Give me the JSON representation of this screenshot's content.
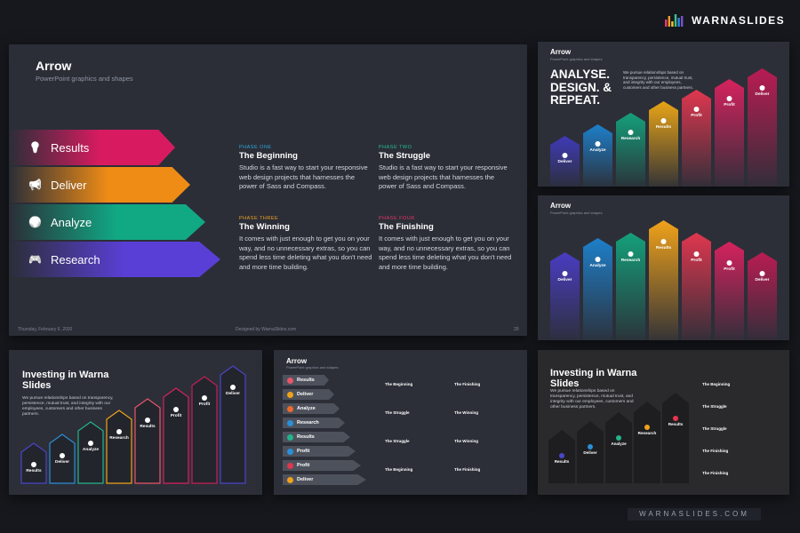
{
  "brand": {
    "name": "WARNASLIDES",
    "bar_colors": [
      "#e63a6f",
      "#f09a2c",
      "#f6c42a",
      "#3fbf8f",
      "#2f8ad8",
      "#7a4fd0"
    ]
  },
  "main_slide": {
    "title": "Arrow",
    "subtitle": "PowerPoint graphics and shapes",
    "arrows": [
      {
        "label": "Results",
        "icon": "lightbulb-icon",
        "color": "#d81b60"
      },
      {
        "label": "Deliver",
        "icon": "megaphone-icon",
        "color": "#ef8c16"
      },
      {
        "label": "Analyze",
        "icon": "globe-icon",
        "color": "#11a884"
      },
      {
        "label": "Research",
        "icon": "gamepad-icon",
        "color": "#5a3fd6"
      }
    ],
    "phases": [
      {
        "label": "PHASE ONE",
        "color": "#2fa8e0",
        "title": "The Beginning",
        "body": "Studio is a fast way to start your responsive web design projects that harnesses the power of Sass and Compass."
      },
      {
        "label": "PHASE TWO",
        "color": "#22c08e",
        "title": "The Struggle",
        "body": "Studio is a fast way to start your responsive web design projects that harnesses the power of Sass and Compass."
      },
      {
        "label": "PHASE THREE",
        "color": "#f0a020",
        "title": "The Winning",
        "body": "It comes with just enough to get you on your way, and no unnecessary extras, so you can spend less time deleting what you don't need and more time building."
      },
      {
        "label": "PHASE FOUR",
        "color": "#e8346a",
        "title": "The Finishing",
        "body": "It comes with just enough to get you on your way, and no unnecessary extras, so you can spend less time deleting what you don't need and more time building."
      }
    ],
    "footer_date": "Thursday, February 6, 2020",
    "footer_center": "Designed by WarnaSlides.com",
    "page_number": "29"
  },
  "thumb_analyse": {
    "title": "Arrow",
    "subtitle": "PowerPoint graphics and shapes",
    "headline": "ANALYSE. DESIGN. & REPEAT.",
    "text": "We pursue relationships based on transparency, persistence, mutual trust, and integrity with our employees, customers and other business partners.",
    "columns": [
      {
        "label": "Deliver",
        "color": "#3f3ab8"
      },
      {
        "label": "Analyze",
        "color": "#1e7fc9"
      },
      {
        "label": "Research",
        "color": "#14a07a"
      },
      {
        "label": "Results",
        "color": "#e8a416"
      },
      {
        "label": "Profit",
        "color": "#e0364f"
      },
      {
        "label": "Profit",
        "color": "#d6225e"
      },
      {
        "label": "Deliver",
        "color": "#b91c52"
      }
    ]
  },
  "thumb_columns": {
    "title": "Arrow",
    "subtitle": "PowerPoint graphics and shapes",
    "columns": [
      {
        "label": "Deliver",
        "color": "#4a3cc2"
      },
      {
        "label": "Analyze",
        "color": "#1e7fc9"
      },
      {
        "label": "Research",
        "color": "#14a07a"
      },
      {
        "label": "Results",
        "color": "#f0a21a"
      },
      {
        "label": "Profit",
        "color": "#e0364f"
      },
      {
        "label": "Profit",
        "color": "#d6225e"
      },
      {
        "label": "Deliver",
        "color": "#b91c52"
      }
    ]
  },
  "thumb_investing": {
    "title": "Investing in Warna Slides",
    "text": "We pursue relationships based on transparency, persistence, mutual trust, and integrity with our employees, customers and other business partners.",
    "columns": [
      {
        "label": "Results",
        "color": "#4a46c8"
      },
      {
        "label": "Deliver",
        "color": "#2a8fd8"
      },
      {
        "label": "Analyze",
        "color": "#22b58a"
      },
      {
        "label": "Research",
        "color": "#f0a21a"
      },
      {
        "label": "Results",
        "color": "#e8566a"
      },
      {
        "label": "Profit",
        "color": "#d6225e"
      },
      {
        "label": "Profit",
        "color": "#c51e58"
      },
      {
        "label": "Deliver",
        "color": "#4a46c8"
      }
    ]
  },
  "thumb_list": {
    "title": "Arrow",
    "subtitle": "PowerPoint graphics and shapes",
    "items": [
      {
        "label": "Results",
        "dot": "#e8566a"
      },
      {
        "label": "Deliver",
        "dot": "#f0a21a"
      },
      {
        "label": "Analyze",
        "dot": "#ef6a2a"
      },
      {
        "label": "Research",
        "dot": "#2a8fd8"
      },
      {
        "label": "Results",
        "dot": "#22b58a"
      },
      {
        "label": "Profit",
        "dot": "#2a8fd8"
      },
      {
        "label": "Profit",
        "dot": "#e0364f"
      },
      {
        "label": "Deliver",
        "dot": "#f0a21a"
      }
    ],
    "entries": [
      "The Beginning",
      "The Finishing",
      "The Struggle",
      "The Winning",
      "The Struggle",
      "The Winning",
      "The Beginning",
      "The Finishing"
    ]
  },
  "thumb_dark": {
    "title": "Investing in Warna Slides",
    "text": "We pursue relationships based on transparency, persistence, mutual trust, and integrity with our employees, customers and other business partners.",
    "columns": [
      {
        "label": "Results",
        "color": "#4a46c8"
      },
      {
        "label": "Deliver",
        "color": "#2a8fd8"
      },
      {
        "label": "Analyze",
        "color": "#22b58a"
      },
      {
        "label": "Research",
        "color": "#f0a21a"
      },
      {
        "label": "Results",
        "color": "#e8364f"
      }
    ],
    "entries": [
      "The Beginning",
      "The Struggle",
      "The Struggle",
      "The Finishing",
      "The Finishing"
    ]
  },
  "watermark": "WARNASLIDES.COM"
}
